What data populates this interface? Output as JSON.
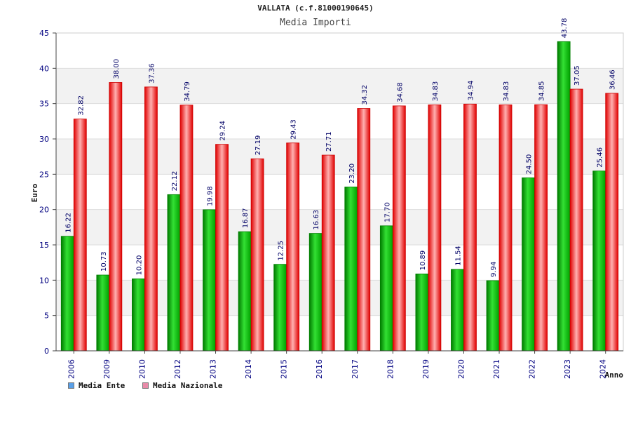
{
  "chart_data": {
    "type": "bar",
    "title": "VALLATA (c.f.81000190645)",
    "subtitle": "Media Importi",
    "xlabel": "Anno",
    "ylabel": "Euro",
    "ylim": [
      0,
      45
    ],
    "yticks": [
      0,
      5,
      10,
      15,
      20,
      25,
      30,
      35,
      40,
      45
    ],
    "categories": [
      "2006",
      "2009",
      "2010",
      "2012",
      "2013",
      "2014",
      "2015",
      "2016",
      "2017",
      "2018",
      "2019",
      "2020",
      "2021",
      "2022",
      "2023",
      "2024"
    ],
    "series": [
      {
        "name": "Media Ente",
        "color": "#00c000",
        "values": [
          16.22,
          10.73,
          10.2,
          22.12,
          19.98,
          16.87,
          12.25,
          16.63,
          23.2,
          17.7,
          10.89,
          11.54,
          9.94,
          24.5,
          43.78,
          25.46
        ],
        "labels": [
          "16.22",
          "10.73",
          "10.20",
          "22.12",
          "19.98",
          "16.87",
          "12.25",
          "16.63",
          "23.20",
          "17.70",
          "10.89",
          "11.54",
          "9.94",
          "24.50",
          "43.78",
          "25.46"
        ]
      },
      {
        "name": "Media Nazionale",
        "color": "#ff2a2a",
        "values": [
          32.82,
          38.0,
          37.36,
          34.79,
          29.24,
          27.19,
          29.43,
          27.71,
          34.32,
          34.68,
          34.83,
          34.94,
          34.83,
          34.85,
          37.05,
          36.46
        ],
        "labels": [
          "32.82",
          "38.00",
          "37.36",
          "34.79",
          "29.24",
          "27.19",
          "29.43",
          "27.71",
          "34.32",
          "34.68",
          "34.83",
          "34.94",
          "34.83",
          "34.85",
          "37.05",
          "36.46"
        ]
      }
    ],
    "grid": true,
    "legend_position": "bottom-left"
  },
  "legend_swatch_colors": [
    "#5aa0e8",
    "#e88aa8"
  ]
}
